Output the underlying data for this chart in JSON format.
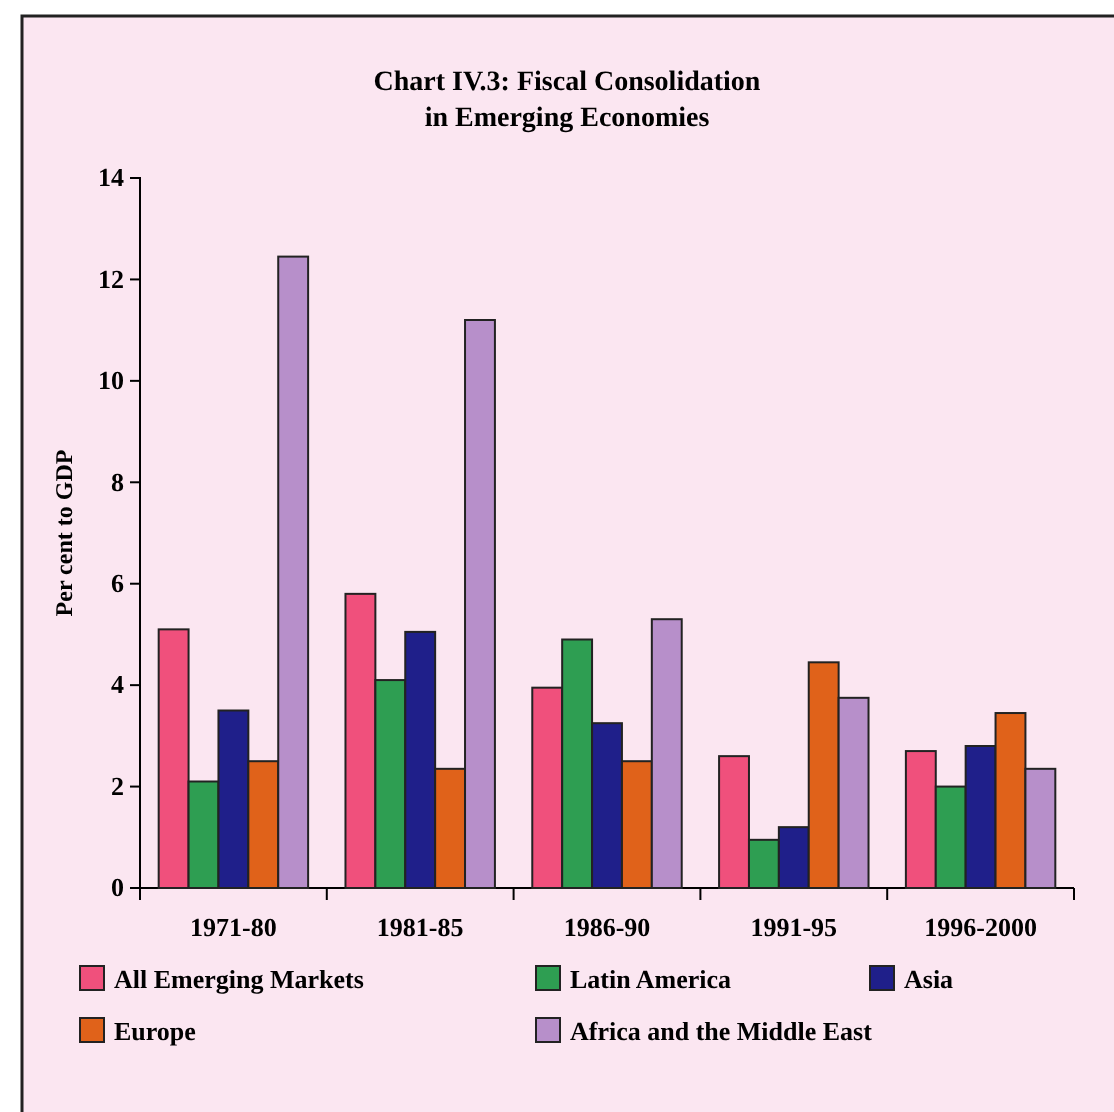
{
  "chart_data": {
    "type": "bar",
    "title": "Chart IV.3: Fiscal Consolidation\nin Emerging Economies",
    "ylabel": "Per cent to GDP",
    "categories": [
      "1971-80",
      "1981-85",
      "1986-90",
      "1991-95",
      "1996-2000"
    ],
    "series": [
      {
        "name": "All Emerging Markets",
        "color": "#f0507c",
        "values": [
          5.1,
          5.8,
          3.95,
          2.6,
          2.7
        ]
      },
      {
        "name": "Latin America",
        "color": "#2e9e52",
        "values": [
          2.1,
          4.1,
          4.9,
          0.95,
          2.0
        ]
      },
      {
        "name": "Asia",
        "color": "#1f1f8a",
        "values": [
          3.5,
          5.05,
          3.25,
          1.2,
          2.8
        ]
      },
      {
        "name": "Europe",
        "color": "#e0621a",
        "values": [
          2.5,
          2.35,
          2.5,
          4.45,
          3.45
        ]
      },
      {
        "name": "Africa and the Middle East",
        "color": "#b78fca",
        "values": [
          12.45,
          11.2,
          5.3,
          3.75,
          2.35
        ]
      }
    ],
    "ylim": [
      0,
      14
    ],
    "yticks": [
      0,
      2,
      4,
      6,
      8,
      10,
      12,
      14
    ],
    "grid": false,
    "legend": "bottom"
  }
}
